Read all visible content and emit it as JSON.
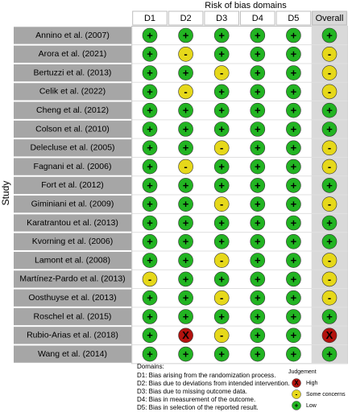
{
  "title": "Risk of bias domains",
  "axis_label": "Study",
  "columns": [
    "D1",
    "D2",
    "D3",
    "D4",
    "D5",
    "Overall"
  ],
  "rows": [
    {
      "study": "Annino et al. (2007)",
      "judgments": [
        "+",
        "+",
        "+",
        "+",
        "+",
        "+"
      ]
    },
    {
      "study": "Arora et al. (2021)",
      "judgments": [
        "+",
        "-",
        "+",
        "+",
        "+",
        "-"
      ]
    },
    {
      "study": "Bertuzzi et al. (2013)",
      "judgments": [
        "+",
        "+",
        "-",
        "+",
        "+",
        "-"
      ]
    },
    {
      "study": "Celik et al. (2022)",
      "judgments": [
        "+",
        "-",
        "+",
        "+",
        "+",
        "-"
      ]
    },
    {
      "study": "Cheng et al. (2012)",
      "judgments": [
        "+",
        "+",
        "+",
        "+",
        "+",
        "+"
      ]
    },
    {
      "study": "Colson et al. (2010)",
      "judgments": [
        "+",
        "+",
        "+",
        "+",
        "+",
        "+"
      ]
    },
    {
      "study": "Delecluse et al. (2005)",
      "judgments": [
        "+",
        "+",
        "-",
        "+",
        "+",
        "-"
      ]
    },
    {
      "study": "Fagnani et al. (2006)",
      "judgments": [
        "+",
        "-",
        "+",
        "+",
        "+",
        "-"
      ]
    },
    {
      "study": "Fort et al. (2012)",
      "judgments": [
        "+",
        "+",
        "+",
        "+",
        "+",
        "+"
      ]
    },
    {
      "study": "Giminiani et al. (2009)",
      "judgments": [
        "+",
        "+",
        "-",
        "+",
        "+",
        "-"
      ]
    },
    {
      "study": "Karatrantou et al. (2013)",
      "judgments": [
        "+",
        "+",
        "+",
        "+",
        "+",
        "+"
      ]
    },
    {
      "study": "Kvorning et al. (2006)",
      "judgments": [
        "+",
        "+",
        "+",
        "+",
        "+",
        "+"
      ]
    },
    {
      "study": "Lamont et al. (2008)",
      "judgments": [
        "+",
        "+",
        "-",
        "+",
        "+",
        "-"
      ]
    },
    {
      "study": "Martínez-Pardo et al. (2013)",
      "judgments": [
        "-",
        "+",
        "+",
        "+",
        "+",
        "-"
      ]
    },
    {
      "study": "Oosthuyse et al. (2013)",
      "judgments": [
        "+",
        "+",
        "-",
        "+",
        "+",
        "-"
      ]
    },
    {
      "study": "Roschel et al. (2015)",
      "judgments": [
        "+",
        "+",
        "+",
        "+",
        "+",
        "+"
      ]
    },
    {
      "study": "Rubio-Arias et al. (2018)",
      "judgments": [
        "+",
        "X",
        "-",
        "+",
        "+",
        "X"
      ]
    },
    {
      "study": "Wang et al. (2014)",
      "judgments": [
        "+",
        "+",
        "+",
        "+",
        "+",
        "+"
      ]
    }
  ],
  "domains_heading": "Domains:",
  "domain_notes": [
    "D1: Bias arising from the randomization process.",
    "D2: Bias due to deviations from intended intervention.",
    "D3: Bias due to missing outcome data.",
    "D4: Bias in measurement of the outcome.",
    "D5: Bias in selection of the reported result."
  ],
  "legend": {
    "title": "Judgement",
    "items": [
      {
        "symbol": "X",
        "label": "High",
        "color": "#b3120e"
      },
      {
        "symbol": "-",
        "label": "Some concerns",
        "color": "#e6d81a"
      },
      {
        "symbol": "+",
        "label": "Low",
        "color": "#22b422"
      }
    ]
  }
}
